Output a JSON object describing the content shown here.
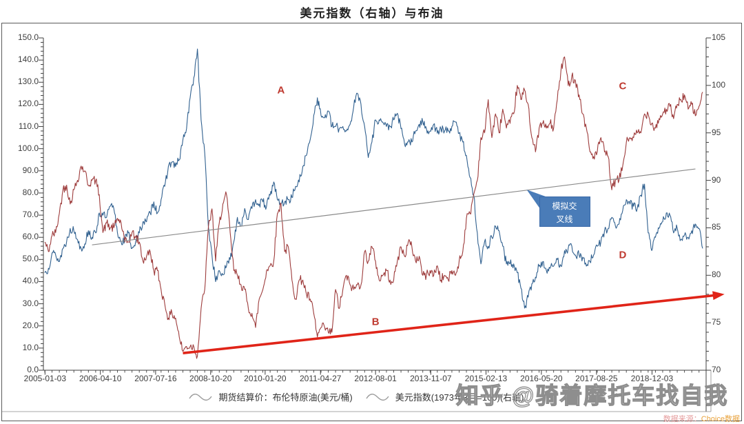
{
  "title": "美元指数（右轴）与布油",
  "watermark": "知乎 @骑着摩托车找自我",
  "source": {
    "prefix": "数据来源：",
    "name": "Choice数据"
  },
  "legend": [
    {
      "label": "期货结算价：布伦特原油(美元/桶)"
    },
    {
      "label": "美元指数(1973年3月=100)(右轴)"
    }
  ],
  "colors": {
    "brent_line": "#30608f",
    "dxy_line": "#9d3b3b",
    "arrow": "#e02418",
    "trend_line": "#8a8a8a",
    "letters": "#bf3a30",
    "callout_fill": "#4a7cb8",
    "axis_text": "#3d3d3d"
  },
  "chart_data": {
    "type": "line",
    "title": "美元指数（右轴）与布油",
    "start_month": "2005-01",
    "months_per_point": 1,
    "x_tick_labels": [
      "2005-01-03",
      "2006-04-10",
      "2007-07-16",
      "2008-10-20",
      "2010-01-20",
      "2011-04-27",
      "2012-08-01",
      "2013-11-07",
      "2015-02-13",
      "2016-05-20",
      "2017-08-25",
      "2018-12-03"
    ],
    "left_axis": {
      "min": 0,
      "max": 150,
      "step": 10,
      "decimals": 1
    },
    "right_axis": {
      "min": 70,
      "max": 105,
      "step": 5,
      "decimals": 0
    },
    "grid": false,
    "legend_position": "bottom",
    "series": [
      {
        "name": "期货结算价：布伦特原油(美元/桶)",
        "axis": "left",
        "color": "#30608f",
        "values": [
          44,
          46,
          53,
          52,
          49,
          55,
          58,
          64,
          63,
          59,
          55,
          57,
          63,
          60,
          62,
          71,
          70,
          69,
          74,
          73,
          62,
          58,
          59,
          62,
          55,
          58,
          62,
          67,
          67,
          71,
          76,
          71,
          77,
          83,
          92,
          94,
          92,
          95,
          104,
          109,
          123,
          132,
          145,
          113,
          98,
          65,
          52,
          40,
          45,
          43,
          47,
          50,
          58,
          69,
          65,
          73,
          68,
          73,
          77,
          75,
          76,
          74,
          79,
          85,
          77,
          75,
          76,
          77,
          78,
          83,
          85,
          92,
          97,
          104,
          115,
          123,
          115,
          114,
          117,
          110,
          110,
          109,
          110,
          108,
          111,
          119,
          125,
          120,
          110,
          96,
          103,
          113,
          113,
          112,
          110,
          110,
          113,
          116,
          109,
          102,
          103,
          103,
          108,
          111,
          112,
          109,
          108,
          111,
          107,
          109,
          108,
          108,
          110,
          112,
          107,
          103,
          97,
          87,
          79,
          62,
          48,
          58,
          56,
          60,
          65,
          63,
          56,
          48,
          48,
          48,
          44,
          37,
          28,
          33,
          39,
          42,
          47,
          49,
          45,
          46,
          47,
          50,
          47,
          54,
          55,
          56,
          52,
          52,
          51,
          47,
          49,
          52,
          56,
          58,
          63,
          64,
          69,
          65,
          66,
          72,
          77,
          75,
          74,
          73,
          79,
          84,
          62,
          54,
          60,
          64,
          67,
          71,
          70,
          62,
          64,
          59,
          61,
          60,
          63,
          66,
          64,
          55
        ]
      },
      {
        "name": "美元指数(1973年3月=100)(右轴)",
        "axis": "right",
        "color": "#9d3b3b",
        "values": [
          83.5,
          82.5,
          84.2,
          84.5,
          86.5,
          89,
          89.5,
          87.5,
          89,
          90,
          91.5,
          91,
          89.5,
          90,
          90,
          88.5,
          84.5,
          85.5,
          85,
          85,
          86,
          85.5,
          83.5,
          83.5,
          84.5,
          84,
          83.5,
          81.5,
          82,
          82.5,
          80.5,
          80.5,
          78.5,
          77,
          75.5,
          76,
          75.5,
          73.5,
          72,
          72.5,
          72.5,
          72.5,
          71.5,
          76.5,
          78.5,
          85,
          87,
          81.5,
          85.5,
          87.5,
          88.5,
          84.5,
          80.5,
          80,
          79,
          78.5,
          76.5,
          76,
          74.5,
          77.5,
          78.5,
          80.5,
          81,
          81.5,
          86.5,
          87.5,
          82.5,
          83,
          79.5,
          77.5,
          79.5,
          79.5,
          78,
          77.5,
          76,
          73.5,
          74.5,
          74.5,
          74,
          74,
          78.5,
          76.5,
          78.5,
          80,
          79,
          78.5,
          79,
          79,
          82.5,
          81.5,
          83,
          81.5,
          79.5,
          80,
          80.5,
          79.5,
          79.5,
          81.5,
          83,
          82,
          83.5,
          83,
          81.5,
          82,
          80,
          80,
          80.5,
          80,
          81,
          79.5,
          80,
          79.5,
          80.5,
          80,
          81.5,
          82.5,
          86,
          86.5,
          88.5,
          90,
          94.5,
          95,
          98.5,
          94.5,
          97,
          95,
          97.5,
          95.5,
          96,
          97,
          100,
          98.5,
          99.5,
          98,
          94.5,
          93,
          95.5,
          96,
          95.5,
          96,
          95.5,
          98.5,
          101.5,
          103,
          100,
          101,
          100.5,
          99,
          97,
          95.5,
          93,
          92.5,
          93,
          94.5,
          93,
          92.5,
          89,
          90,
          90,
          91.5,
          94,
          94.5,
          94.5,
          95,
          95,
          97,
          97,
          96,
          95.5,
          96.5,
          97,
          97.5,
          97.8,
          96.5,
          98,
          98.5,
          99,
          97.5,
          98,
          96.8,
          97.8,
          99.3
        ]
      }
    ],
    "annotations": {
      "letters": [
        {
          "text": "A",
          "month": "2010-06",
          "left_value": 126.5
        },
        {
          "text": "B",
          "month": "2012-08",
          "left_value": 21.8
        },
        {
          "text": "C",
          "month": "2018-04",
          "left_value": 128.2
        },
        {
          "text": "D",
          "month": "2018-04",
          "left_value": 52.0
        }
      ],
      "trend_line": {
        "axis": "right",
        "from": {
          "date": "2006-02",
          "value": 83.2
        },
        "to": {
          "date": "2019-12",
          "value": 91.2
        }
      },
      "arrow": {
        "axis": "right",
        "from": {
          "date": "2008-03",
          "value": 71.8
        },
        "to": {
          "date": "2020-08",
          "value": 78.0
        }
      },
      "callout": {
        "line1": "模拟交",
        "line2": "叉线",
        "month": "2016-05",
        "left_value": 78.4
      }
    }
  }
}
